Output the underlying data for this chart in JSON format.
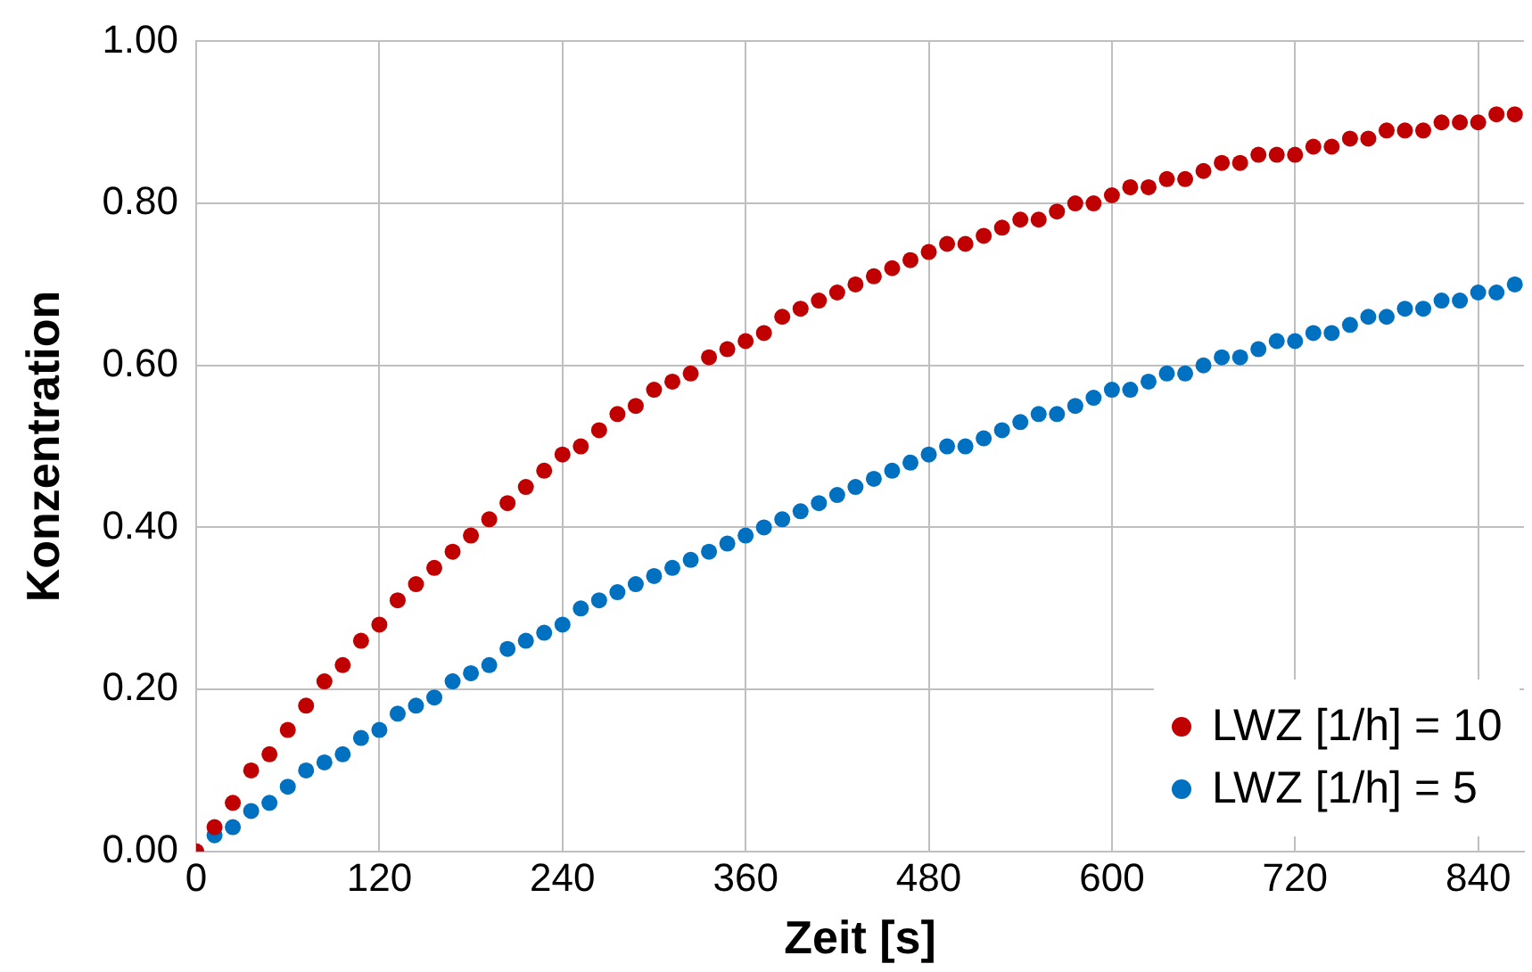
{
  "chart_data": {
    "type": "scatter",
    "xlabel": "Zeit [s]",
    "ylabel": "Konzentration",
    "x": [
      0,
      12,
      24,
      36,
      48,
      60,
      72,
      84,
      96,
      108,
      120,
      132,
      144,
      156,
      168,
      180,
      192,
      204,
      216,
      228,
      240,
      252,
      264,
      276,
      288,
      300,
      312,
      324,
      336,
      348,
      360,
      372,
      384,
      396,
      408,
      420,
      432,
      444,
      456,
      468,
      480,
      492,
      504,
      516,
      528,
      540,
      552,
      564,
      576,
      588,
      600,
      612,
      624,
      636,
      648,
      660,
      672,
      684,
      696,
      708,
      720,
      732,
      744,
      756,
      768,
      780,
      792,
      804,
      816,
      828,
      840,
      852,
      864
    ],
    "series": [
      {
        "name": "LWZ [1/h] = 10",
        "color": "#c00000",
        "values": [
          0,
          0.03,
          0.06,
          0.1,
          0.12,
          0.15,
          0.18,
          0.21,
          0.23,
          0.26,
          0.28,
          0.31,
          0.33,
          0.35,
          0.37,
          0.39,
          0.41,
          0.43,
          0.45,
          0.47,
          0.49,
          0.5,
          0.52,
          0.54,
          0.55,
          0.57,
          0.58,
          0.59,
          0.61,
          0.62,
          0.63,
          0.64,
          0.66,
          0.67,
          0.68,
          0.69,
          0.7,
          0.71,
          0.72,
          0.73,
          0.74,
          0.75,
          0.75,
          0.76,
          0.77,
          0.78,
          0.78,
          0.79,
          0.8,
          0.8,
          0.81,
          0.82,
          0.82,
          0.83,
          0.83,
          0.84,
          0.85,
          0.85,
          0.86,
          0.86,
          0.86,
          0.87,
          0.87,
          0.88,
          0.88,
          0.89,
          0.89,
          0.89,
          0.9,
          0.9,
          0.9,
          0.91,
          0.91
        ]
      },
      {
        "name": "LWZ [1/h] = 5",
        "color": "#0070c0",
        "values": [
          0,
          0.02,
          0.03,
          0.05,
          0.06,
          0.08,
          0.1,
          0.11,
          0.12,
          0.14,
          0.15,
          0.17,
          0.18,
          0.19,
          0.21,
          0.22,
          0.23,
          0.25,
          0.26,
          0.27,
          0.28,
          0.3,
          0.31,
          0.32,
          0.33,
          0.34,
          0.35,
          0.36,
          0.37,
          0.38,
          0.39,
          0.4,
          0.41,
          0.42,
          0.43,
          0.44,
          0.45,
          0.46,
          0.47,
          0.48,
          0.49,
          0.5,
          0.5,
          0.51,
          0.52,
          0.53,
          0.54,
          0.54,
          0.55,
          0.56,
          0.57,
          0.57,
          0.58,
          0.59,
          0.59,
          0.6,
          0.61,
          0.61,
          0.62,
          0.63,
          0.63,
          0.64,
          0.64,
          0.65,
          0.66,
          0.66,
          0.67,
          0.67,
          0.68,
          0.68,
          0.69,
          0.69,
          0.7
        ]
      }
    ],
    "xlim": [
      0,
      870
    ],
    "xticks": [
      0,
      120,
      240,
      360,
      480,
      600,
      720,
      840
    ],
    "ylim": [
      0,
      1
    ],
    "yticks": [
      {
        "value": 0,
        "label": "0.00"
      },
      {
        "value": 0.2,
        "label": "0.20"
      },
      {
        "value": 0.4,
        "label": "0.40"
      },
      {
        "value": 0.6,
        "label": "0.60"
      },
      {
        "value": 0.8,
        "label": "0.80"
      },
      {
        "value": 1,
        "label": "1.00"
      }
    ],
    "grid": true,
    "legend": "bottom right",
    "marker": "circle"
  }
}
